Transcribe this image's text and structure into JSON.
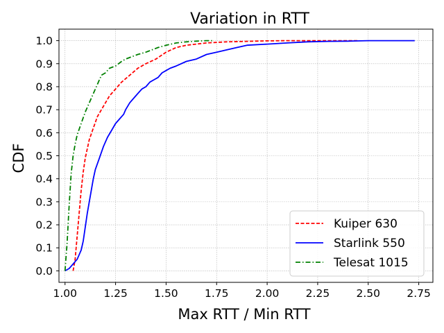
{
  "chart_data": {
    "type": "line",
    "title": "Variation in RTT",
    "xlabel": "Max RTT / Min RTT",
    "ylabel": "CDF",
    "xlim": [
      0.97,
      2.82
    ],
    "ylim": [
      -0.05,
      1.05
    ],
    "xticks": [
      1.0,
      1.25,
      1.5,
      1.75,
      2.0,
      2.25,
      2.5,
      2.75
    ],
    "xtick_labels": [
      "1.00",
      "1.25",
      "1.50",
      "1.75",
      "2.00",
      "2.25",
      "2.50",
      "2.75"
    ],
    "yticks": [
      0.0,
      0.1,
      0.2,
      0.3,
      0.4,
      0.5,
      0.6,
      0.7,
      0.8,
      0.9,
      1.0
    ],
    "ytick_labels": [
      "0.0",
      "0.1",
      "0.2",
      "0.3",
      "0.4",
      "0.5",
      "0.6",
      "0.7",
      "0.8",
      "0.9",
      "1.0"
    ],
    "grid": true,
    "legend_position": "lower-right",
    "series": [
      {
        "name": "Kuiper 630",
        "color": "#ff0000",
        "style": "dashed",
        "x": [
          1.04,
          1.05,
          1.06,
          1.07,
          1.08,
          1.09,
          1.1,
          1.12,
          1.14,
          1.16,
          1.18,
          1.2,
          1.22,
          1.25,
          1.28,
          1.32,
          1.36,
          1.4,
          1.45,
          1.5,
          1.55,
          1.6,
          1.7,
          1.8,
          1.9,
          2.0,
          2.1,
          2.2,
          2.3,
          2.4,
          2.45
        ],
        "y": [
          0.0,
          0.05,
          0.15,
          0.25,
          0.35,
          0.43,
          0.49,
          0.57,
          0.62,
          0.67,
          0.7,
          0.73,
          0.76,
          0.79,
          0.82,
          0.85,
          0.88,
          0.9,
          0.92,
          0.95,
          0.97,
          0.98,
          0.99,
          0.995,
          0.997,
          0.999,
          1.0,
          1.0,
          1.0,
          1.0,
          1.0
        ]
      },
      {
        "name": "Starlink 550",
        "color": "#0000ff",
        "style": "solid",
        "x": [
          1.0,
          1.02,
          1.03,
          1.04,
          1.05,
          1.06,
          1.07,
          1.08,
          1.09,
          1.1,
          1.11,
          1.12,
          1.13,
          1.14,
          1.15,
          1.17,
          1.19,
          1.21,
          1.23,
          1.25,
          1.27,
          1.29,
          1.3,
          1.32,
          1.34,
          1.36,
          1.38,
          1.4,
          1.42,
          1.44,
          1.46,
          1.48,
          1.5,
          1.52,
          1.55,
          1.6,
          1.65,
          1.7,
          1.75,
          1.8,
          1.85,
          1.9,
          2.0,
          2.1,
          2.2,
          2.3,
          2.4,
          2.5,
          2.6,
          2.73
        ],
        "y": [
          0.0,
          0.01,
          0.02,
          0.03,
          0.04,
          0.05,
          0.07,
          0.09,
          0.13,
          0.19,
          0.25,
          0.3,
          0.35,
          0.4,
          0.44,
          0.49,
          0.54,
          0.58,
          0.61,
          0.64,
          0.66,
          0.68,
          0.7,
          0.73,
          0.75,
          0.77,
          0.79,
          0.8,
          0.82,
          0.83,
          0.84,
          0.86,
          0.87,
          0.88,
          0.89,
          0.91,
          0.92,
          0.94,
          0.95,
          0.96,
          0.97,
          0.98,
          0.985,
          0.99,
          0.995,
          0.997,
          0.998,
          1.0,
          1.0,
          1.0
        ]
      },
      {
        "name": "Telesat 1015",
        "color": "#008000",
        "style": "dashdot",
        "x": [
          1.0,
          1.01,
          1.02,
          1.03,
          1.04,
          1.05,
          1.06,
          1.08,
          1.1,
          1.12,
          1.14,
          1.16,
          1.18,
          1.2,
          1.22,
          1.25,
          1.28,
          1.3,
          1.33,
          1.36,
          1.4,
          1.43,
          1.46,
          1.5,
          1.55,
          1.6,
          1.65,
          1.7,
          1.73
        ],
        "y": [
          0.0,
          0.12,
          0.28,
          0.42,
          0.5,
          0.55,
          0.59,
          0.64,
          0.69,
          0.73,
          0.77,
          0.81,
          0.85,
          0.86,
          0.88,
          0.89,
          0.91,
          0.92,
          0.93,
          0.94,
          0.95,
          0.96,
          0.97,
          0.98,
          0.99,
          0.995,
          0.998,
          1.0,
          1.0
        ]
      }
    ]
  }
}
